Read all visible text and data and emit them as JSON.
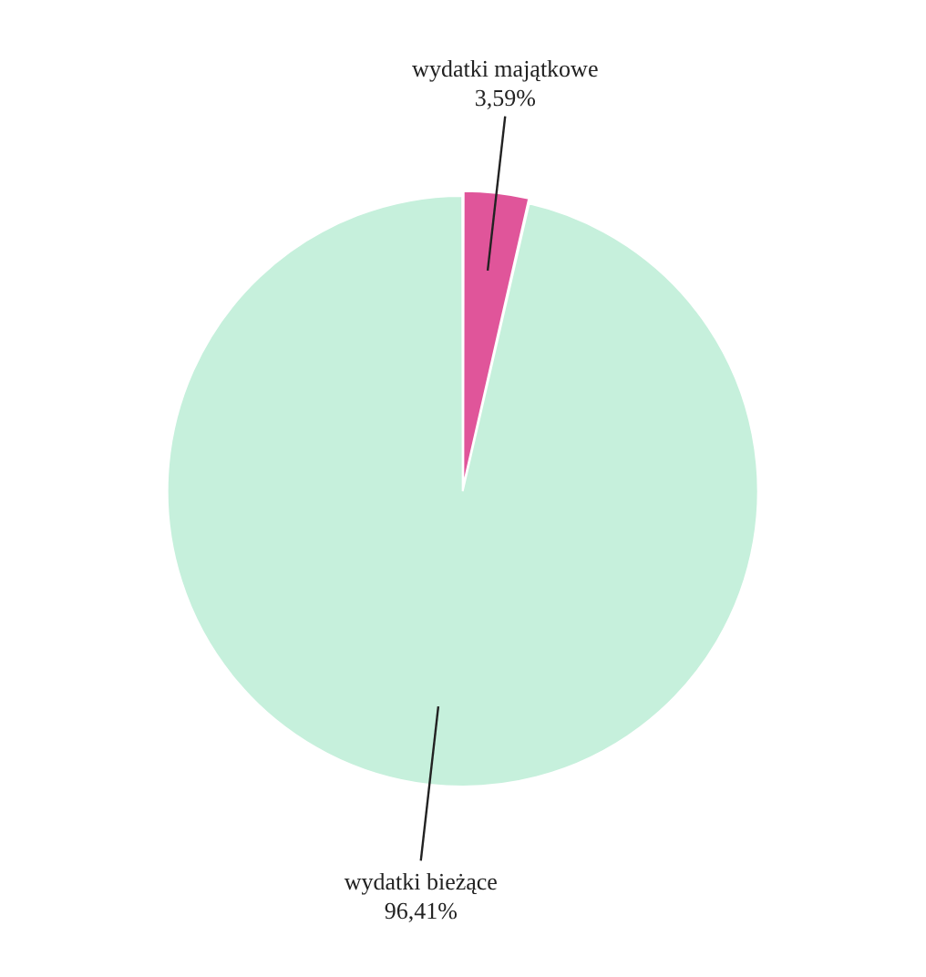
{
  "chart_data": {
    "type": "pie",
    "categories": [
      "wydatki majątkowe",
      "wydatki bieżące"
    ],
    "values": [
      3.59,
      96.41
    ],
    "colors": [
      "#e0559a",
      "#c6f0dc"
    ],
    "value_labels": [
      "3,59%",
      "96,41%"
    ],
    "legend": false
  }
}
